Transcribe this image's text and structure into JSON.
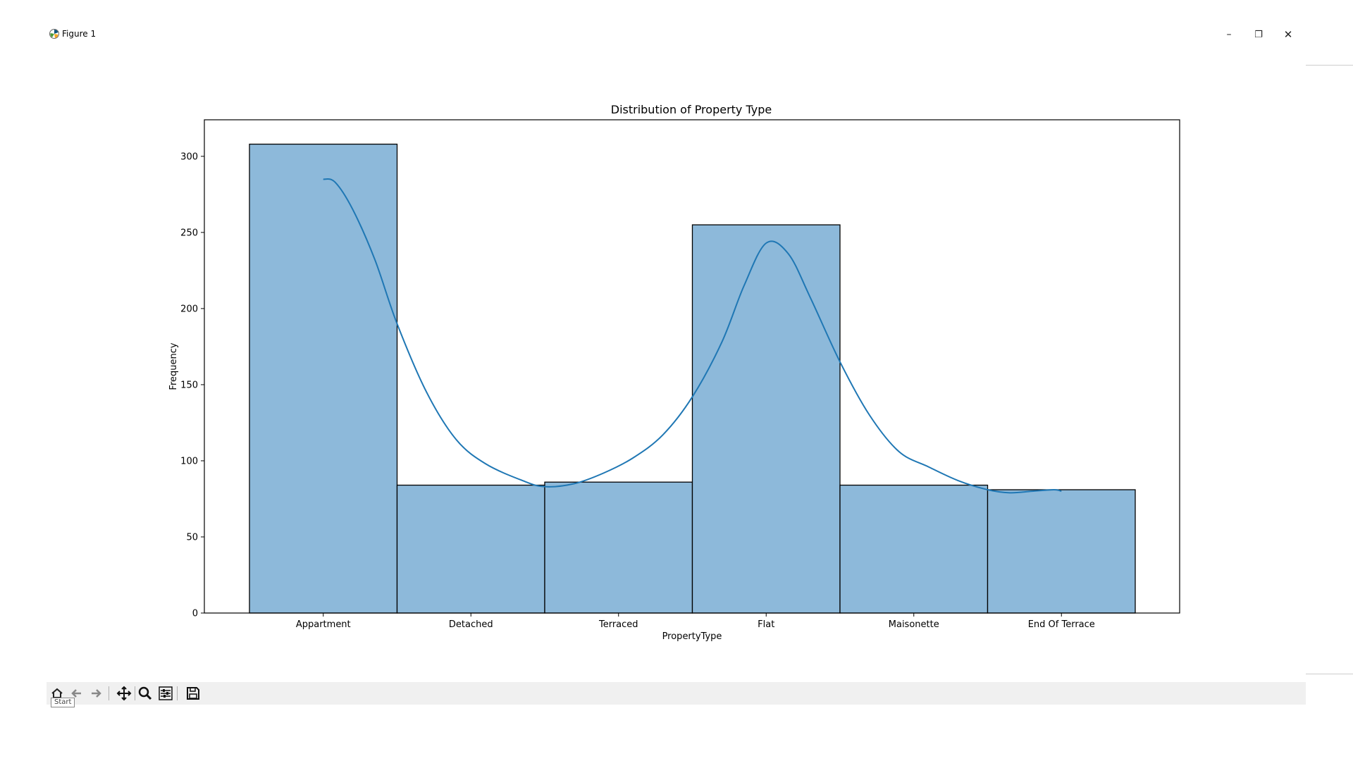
{
  "window": {
    "title": "Figure 1",
    "controls": {
      "minimize": "–",
      "restore": "❐",
      "close": "✕"
    }
  },
  "toolbar": {
    "buttons": [
      {
        "name": "home-button",
        "icon": "home-icon"
      },
      {
        "name": "back-button",
        "icon": "arrow-left-icon"
      },
      {
        "name": "forward-button",
        "icon": "arrow-right-icon"
      },
      {
        "name": "pan-button",
        "icon": "move-icon"
      },
      {
        "name": "zoom-button",
        "icon": "magnifier-icon"
      },
      {
        "name": "configure-subplots-button",
        "icon": "sliders-icon"
      },
      {
        "name": "save-button",
        "icon": "floppy-disk-icon"
      }
    ],
    "tooltip": "Start"
  },
  "chart_data": {
    "type": "bar",
    "title": "Distribution of Property Type",
    "xlabel": "PropertyType",
    "ylabel": "Frequency",
    "categories": [
      "Appartment",
      "Detached",
      "Terraced",
      "Flat",
      "Maisonette",
      "End Of Terrace"
    ],
    "values": [
      308,
      84,
      86,
      255,
      84,
      81
    ],
    "ylim": [
      0,
      324
    ],
    "yticks": [
      0,
      50,
      100,
      150,
      200,
      250,
      300
    ],
    "grid": false,
    "bar_color": "#8db9da",
    "bar_edge_color": "#000000",
    "kde": {
      "color": "#1f77b4",
      "points": [
        [
          0.0,
          285
        ],
        [
          0.08,
          283
        ],
        [
          0.2,
          265
        ],
        [
          0.35,
          232
        ],
        [
          0.5,
          190
        ],
        [
          0.7,
          145
        ],
        [
          0.9,
          114
        ],
        [
          1.1,
          98
        ],
        [
          1.35,
          87
        ],
        [
          1.5,
          83
        ],
        [
          1.7,
          85
        ],
        [
          1.9,
          92
        ],
        [
          2.1,
          102
        ],
        [
          2.3,
          117
        ],
        [
          2.5,
          142
        ],
        [
          2.7,
          178
        ],
        [
          2.85,
          215
        ],
        [
          3.0,
          243
        ],
        [
          3.15,
          236
        ],
        [
          3.3,
          207
        ],
        [
          3.5,
          165
        ],
        [
          3.7,
          130
        ],
        [
          3.9,
          106
        ],
        [
          4.1,
          96
        ],
        [
          4.3,
          87
        ],
        [
          4.5,
          81
        ],
        [
          4.65,
          79
        ],
        [
          4.8,
          80
        ],
        [
          4.95,
          81
        ],
        [
          5.0,
          80
        ]
      ]
    }
  }
}
